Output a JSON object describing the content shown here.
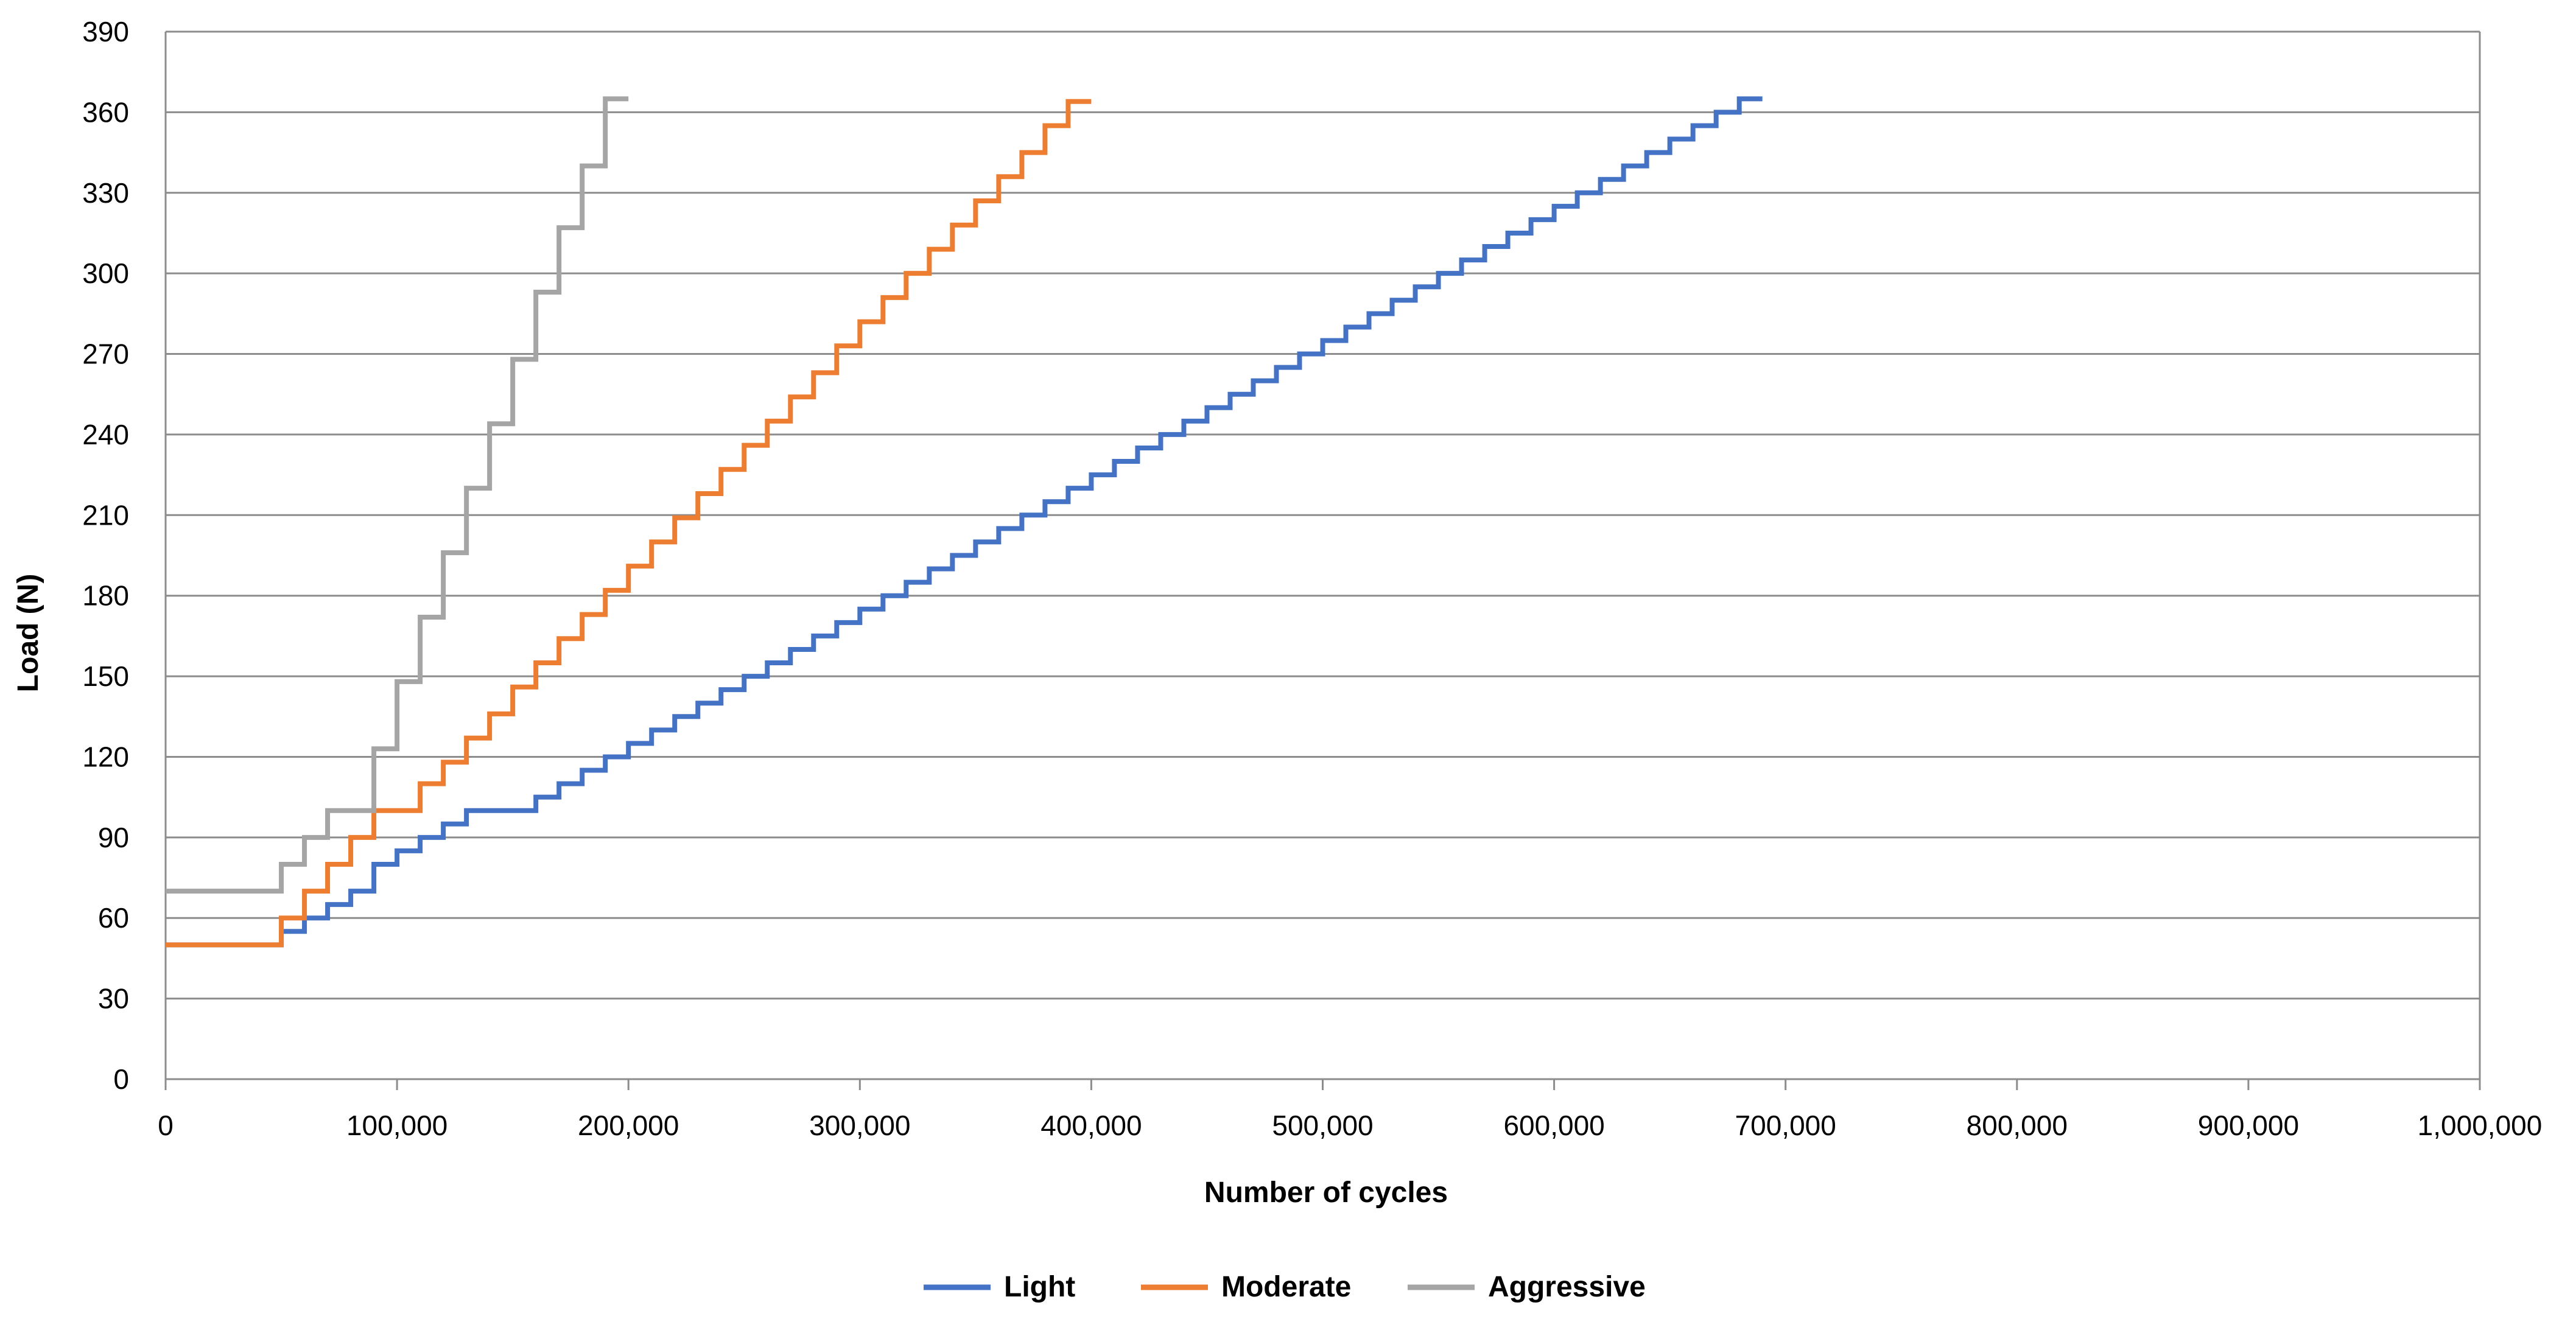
{
  "chart_data": {
    "type": "line",
    "xlabel": "Number of cycles",
    "ylabel": "Load (N)",
    "xlim": [
      0,
      1000000
    ],
    "ylim": [
      0,
      390
    ],
    "x_ticks": [
      0,
      100000,
      200000,
      300000,
      400000,
      500000,
      600000,
      700000,
      800000,
      900000,
      1000000
    ],
    "x_tick_labels": [
      "0",
      "100,000",
      "200,000",
      "300,000",
      "400,000",
      "500,000",
      "600,000",
      "700,000",
      "800,000",
      "900,000",
      "1,000,000"
    ],
    "y_ticks": [
      0,
      30,
      60,
      90,
      120,
      150,
      180,
      210,
      240,
      270,
      300,
      330,
      360,
      390
    ],
    "y_tick_labels": [
      "0",
      "30",
      "60",
      "90",
      "120",
      "150",
      "180",
      "210",
      "240",
      "270",
      "300",
      "330",
      "360",
      "390"
    ],
    "grid": true,
    "legend_position": "bottom",
    "step": "post",
    "series": [
      {
        "name": "Light",
        "color": "#4472c4",
        "points": [
          [
            0,
            50
          ],
          [
            50000,
            55
          ],
          [
            60000,
            60
          ],
          [
            70000,
            65
          ],
          [
            80000,
            70
          ],
          [
            90000,
            80
          ],
          [
            100000,
            85
          ],
          [
            110000,
            90
          ],
          [
            120000,
            95
          ],
          [
            130000,
            100
          ],
          [
            160000,
            105
          ],
          [
            170000,
            110
          ],
          [
            180000,
            115
          ],
          [
            190000,
            120
          ],
          [
            200000,
            125
          ],
          [
            210000,
            130
          ],
          [
            220000,
            135
          ],
          [
            230000,
            140
          ],
          [
            240000,
            145
          ],
          [
            250000,
            150
          ],
          [
            260000,
            155
          ],
          [
            270000,
            160
          ],
          [
            280000,
            165
          ],
          [
            290000,
            170
          ],
          [
            300000,
            175
          ],
          [
            310000,
            180
          ],
          [
            320000,
            185
          ],
          [
            330000,
            190
          ],
          [
            340000,
            195
          ],
          [
            350000,
            200
          ],
          [
            360000,
            205
          ],
          [
            370000,
            210
          ],
          [
            380000,
            215
          ],
          [
            390000,
            220
          ],
          [
            400000,
            225
          ],
          [
            410000,
            230
          ],
          [
            420000,
            235
          ],
          [
            430000,
            240
          ],
          [
            440000,
            245
          ],
          [
            450000,
            250
          ],
          [
            460000,
            255
          ],
          [
            470000,
            260
          ],
          [
            480000,
            265
          ],
          [
            490000,
            270
          ],
          [
            500000,
            275
          ],
          [
            510000,
            280
          ],
          [
            520000,
            285
          ],
          [
            530000,
            290
          ],
          [
            540000,
            295
          ],
          [
            550000,
            300
          ],
          [
            560000,
            305
          ],
          [
            570000,
            310
          ],
          [
            580000,
            315
          ],
          [
            590000,
            320
          ],
          [
            600000,
            325
          ],
          [
            610000,
            330
          ],
          [
            620000,
            335
          ],
          [
            630000,
            340
          ],
          [
            640000,
            345
          ],
          [
            650000,
            350
          ],
          [
            660000,
            355
          ],
          [
            670000,
            360
          ],
          [
            680000,
            365
          ],
          [
            690000,
            365
          ]
        ]
      },
      {
        "name": "Moderate",
        "color": "#ed7d31",
        "points": [
          [
            0,
            50
          ],
          [
            50000,
            60
          ],
          [
            60000,
            70
          ],
          [
            70000,
            80
          ],
          [
            80000,
            90
          ],
          [
            90000,
            100
          ],
          [
            110000,
            110
          ],
          [
            120000,
            118
          ],
          [
            130000,
            127
          ],
          [
            140000,
            136
          ],
          [
            150000,
            146
          ],
          [
            160000,
            155
          ],
          [
            170000,
            164
          ],
          [
            180000,
            173
          ],
          [
            190000,
            182
          ],
          [
            200000,
            191
          ],
          [
            210000,
            200
          ],
          [
            220000,
            209
          ],
          [
            230000,
            218
          ],
          [
            240000,
            227
          ],
          [
            250000,
            236
          ],
          [
            260000,
            245
          ],
          [
            270000,
            254
          ],
          [
            280000,
            263
          ],
          [
            290000,
            273
          ],
          [
            300000,
            282
          ],
          [
            310000,
            291
          ],
          [
            320000,
            300
          ],
          [
            330000,
            309
          ],
          [
            340000,
            318
          ],
          [
            350000,
            327
          ],
          [
            360000,
            336
          ],
          [
            370000,
            345
          ],
          [
            380000,
            355
          ],
          [
            390000,
            364
          ],
          [
            400000,
            364
          ]
        ]
      },
      {
        "name": "Aggressive",
        "color": "#a5a5a5",
        "points": [
          [
            0,
            70
          ],
          [
            50000,
            80
          ],
          [
            60000,
            90
          ],
          [
            70000,
            100
          ],
          [
            80000,
            100
          ],
          [
            90000,
            123
          ],
          [
            100000,
            148
          ],
          [
            110000,
            172
          ],
          [
            120000,
            196
          ],
          [
            130000,
            220
          ],
          [
            140000,
            244
          ],
          [
            150000,
            268
          ],
          [
            160000,
            293
          ],
          [
            170000,
            317
          ],
          [
            180000,
            340
          ],
          [
            190000,
            365
          ],
          [
            200000,
            365
          ]
        ]
      }
    ]
  }
}
